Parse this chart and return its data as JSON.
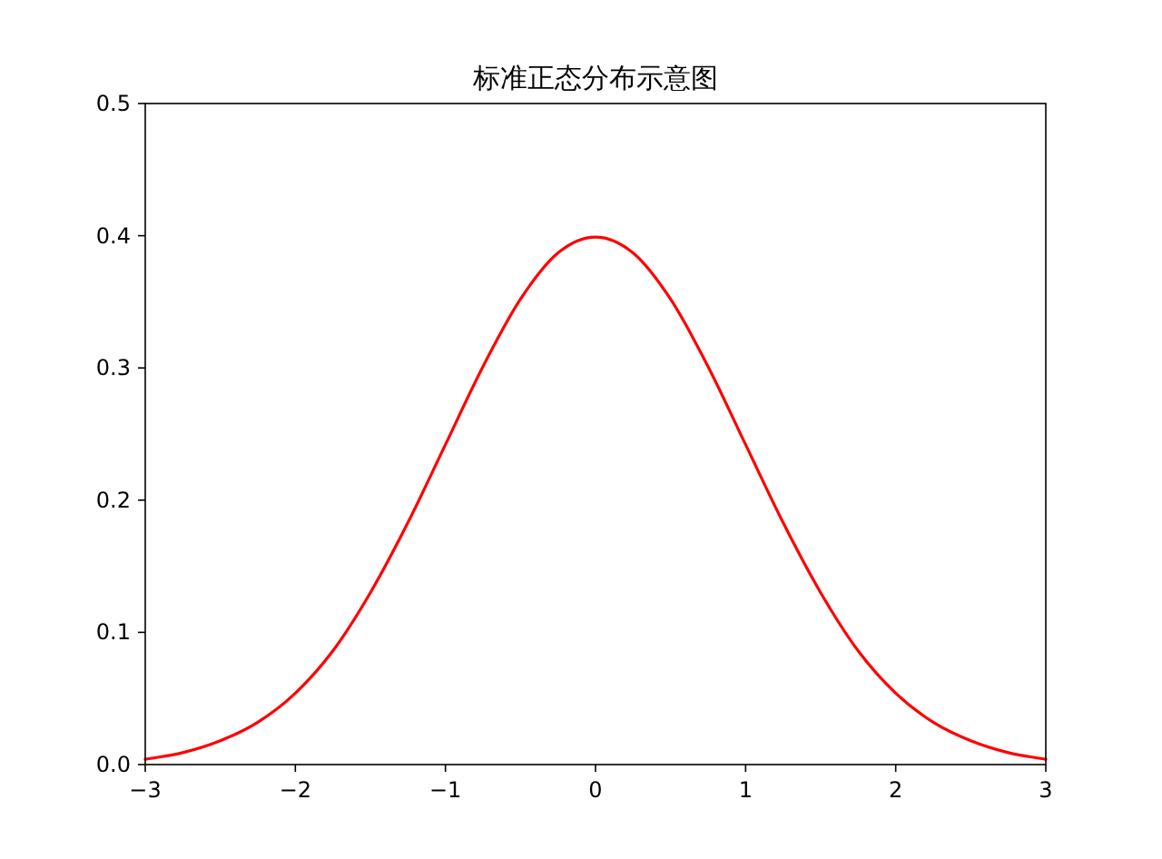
{
  "chart_data": {
    "type": "line",
    "title": "标准正态分布示意图",
    "x": [
      -3,
      -2.75,
      -2.5,
      -2.25,
      -2,
      -1.75,
      -1.5,
      -1.25,
      -1,
      -0.75,
      -0.5,
      -0.25,
      0,
      0.25,
      0.5,
      0.75,
      1,
      1.25,
      1.5,
      1.75,
      2,
      2.25,
      2.5,
      2.75,
      3
    ],
    "series": [
      {
        "color": "#ff0000",
        "values": [
          0.004,
          0.009,
          0.018,
          0.032,
          0.054,
          0.086,
          0.13,
          0.183,
          0.242,
          0.301,
          0.352,
          0.387,
          0.399,
          0.387,
          0.352,
          0.301,
          0.242,
          0.183,
          0.13,
          0.086,
          0.054,
          0.032,
          0.018,
          0.009,
          0.004
        ]
      }
    ],
    "xlim": [
      -3,
      3
    ],
    "ylim": [
      0,
      0.5
    ],
    "xticks": [
      {
        "value": -3,
        "label": "−3"
      },
      {
        "value": -2,
        "label": "−2"
      },
      {
        "value": -1,
        "label": "−1"
      },
      0,
      1,
      2,
      3
    ],
    "yticks": [
      {
        "value": 0,
        "label": "0.0"
      },
      0.1,
      0.2,
      0.3,
      0.4,
      0.5
    ],
    "grid": false,
    "marker": "none",
    "line_style": "solid"
  }
}
